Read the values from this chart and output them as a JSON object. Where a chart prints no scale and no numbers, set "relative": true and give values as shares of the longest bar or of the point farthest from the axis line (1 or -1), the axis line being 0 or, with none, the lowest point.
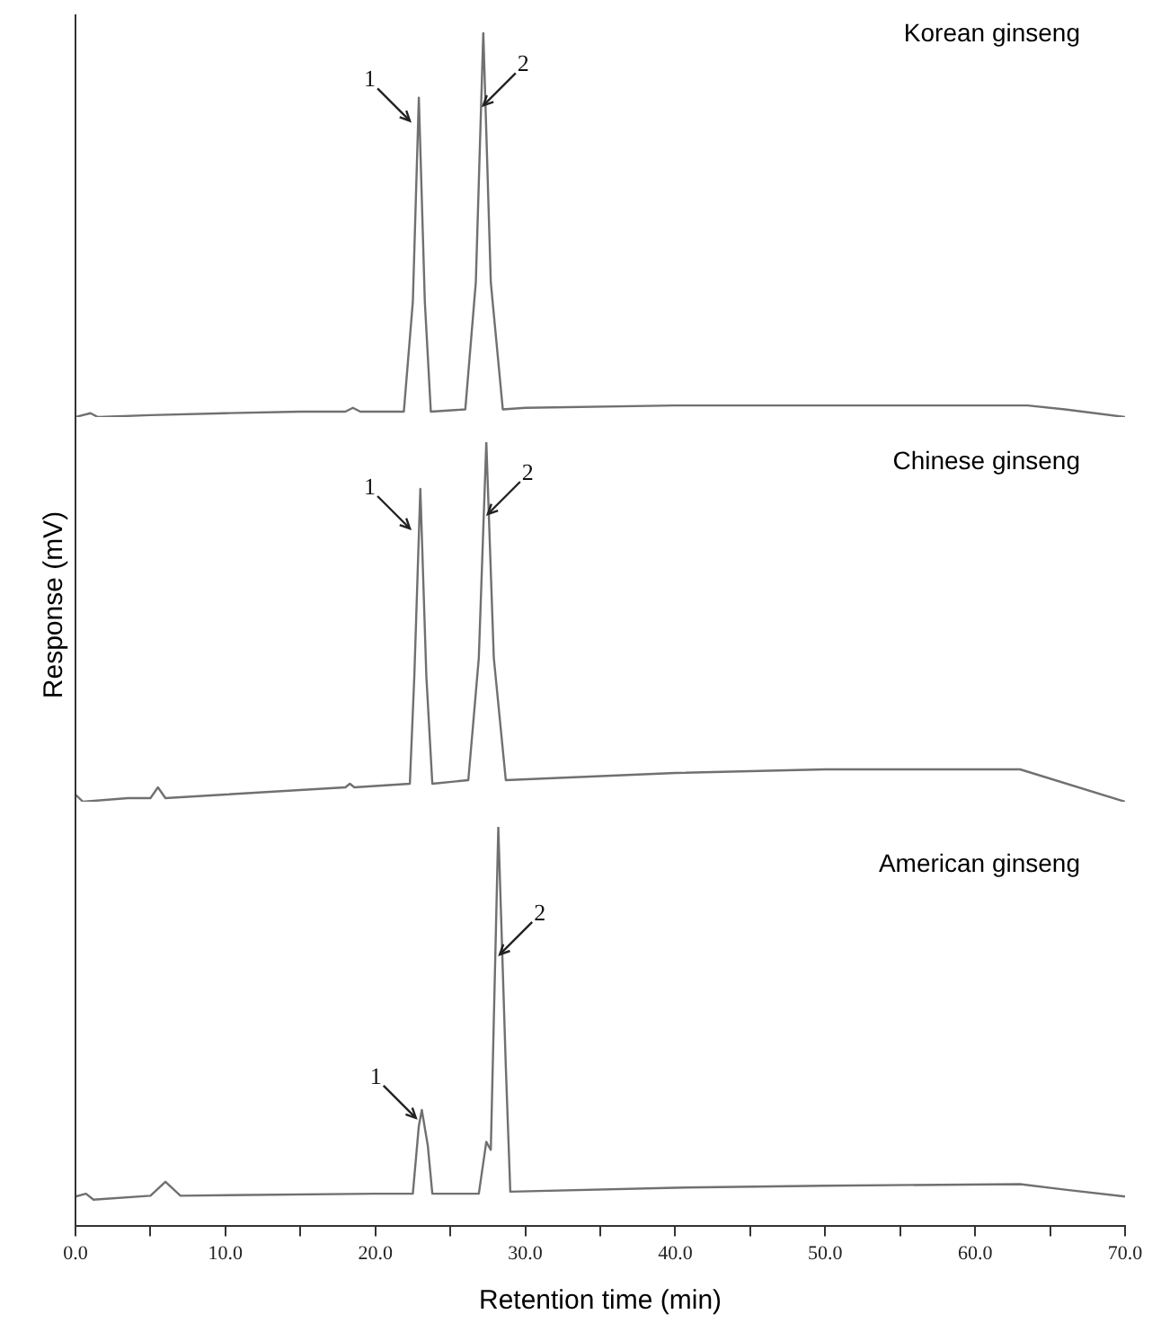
{
  "chart_data": [
    {
      "type": "line",
      "relative": true,
      "color": "#707070",
      "xlim": [
        0,
        70
      ],
      "tick_labels": false,
      "x": [
        0,
        1,
        1.5,
        5,
        10,
        15,
        18,
        18.5,
        19,
        21.9,
        22.5,
        22.9,
        23.3,
        23.7,
        26.0,
        26.7,
        27.2,
        27.7,
        28.5,
        30,
        40,
        50,
        60,
        63.5,
        66,
        70
      ],
      "values": [
        0,
        0.01,
        0,
        0.005,
        0.01,
        0.014,
        0.014,
        0.024,
        0.014,
        0.014,
        0.3,
        0.83,
        0.3,
        0.014,
        0.02,
        0.35,
        1,
        0.35,
        0.02,
        0.024,
        0.03,
        0.03,
        0.03,
        0.03,
        0.02,
        0
      ],
      "annotations": [
        "Korean ginseng",
        {
          "text": "1",
          "x": 22.3,
          "y": 0.77
        },
        {
          "text": "2",
          "x": 27.2,
          "y": 0.81
        }
      ]
    },
    {
      "type": "line",
      "relative": true,
      "color": "#707070",
      "xlim": [
        0,
        70
      ],
      "tick_labels": false,
      "ylabel": "Response (mV)",
      "x": [
        0,
        0.5,
        3.5,
        5,
        5.5,
        6,
        10,
        18,
        18.3,
        18.6,
        22.3,
        22.6,
        23.0,
        23.4,
        23.8,
        26.2,
        26.9,
        27.4,
        27.9,
        28.7,
        40,
        50,
        63,
        70
      ],
      "values": [
        0.02,
        0,
        0.01,
        0.01,
        0.04,
        0.01,
        0.02,
        0.04,
        0.05,
        0.04,
        0.05,
        0.35,
        0.87,
        0.35,
        0.05,
        0.06,
        0.4,
        1,
        0.4,
        0.06,
        0.08,
        0.09,
        0.09,
        0
      ],
      "annotations": [
        "Chinese ginseng",
        {
          "text": "1",
          "x": 22.3,
          "y": 0.76
        },
        {
          "text": "2",
          "x": 27.5,
          "y": 0.8
        }
      ]
    },
    {
      "type": "line",
      "relative": true,
      "color": "#707070",
      "xlim": [
        0,
        70
      ],
      "tick_labels": "x",
      "xlabel": "Retention time (min)",
      "xticks": [
        {
          "value": 0,
          "label": "0.0"
        },
        {
          "value": 5,
          "label": null
        },
        {
          "value": 10,
          "label": "10.0"
        },
        {
          "value": 15,
          "label": null
        },
        {
          "value": 20,
          "label": "20.0"
        },
        {
          "value": 25,
          "label": null
        },
        {
          "value": 30,
          "label": "30.0"
        },
        {
          "value": 35,
          "label": null
        },
        {
          "value": 40,
          "label": "40.0"
        },
        {
          "value": 45,
          "label": null
        },
        {
          "value": 50,
          "label": "50.0"
        },
        {
          "value": 55,
          "label": null
        },
        {
          "value": 60,
          "label": "60.0"
        },
        {
          "value": 65,
          "label": null
        },
        {
          "value": 70,
          "label": "70.0"
        }
      ],
      "x": [
        0,
        0.7,
        1.2,
        5,
        6,
        7,
        20,
        22.5,
        22.9,
        23.1,
        23.5,
        23.8,
        26.9,
        27.4,
        27.7,
        28.2,
        28.7,
        29.0,
        40,
        50,
        63,
        66,
        70
      ],
      "values": [
        0.073,
        0.08,
        0.065,
        0.075,
        0.11,
        0.075,
        0.08,
        0.08,
        0.25,
        0.29,
        0.2,
        0.08,
        0.08,
        0.21,
        0.19,
        1,
        0.4,
        0.085,
        0.095,
        0.1,
        0.104,
        0.09,
        0.073
      ],
      "annotations": [
        "American ginseng",
        {
          "text": "1",
          "x": 22.7,
          "y": 0.27
        },
        {
          "text": "2",
          "x": 28.3,
          "y": 0.68
        }
      ]
    }
  ]
}
